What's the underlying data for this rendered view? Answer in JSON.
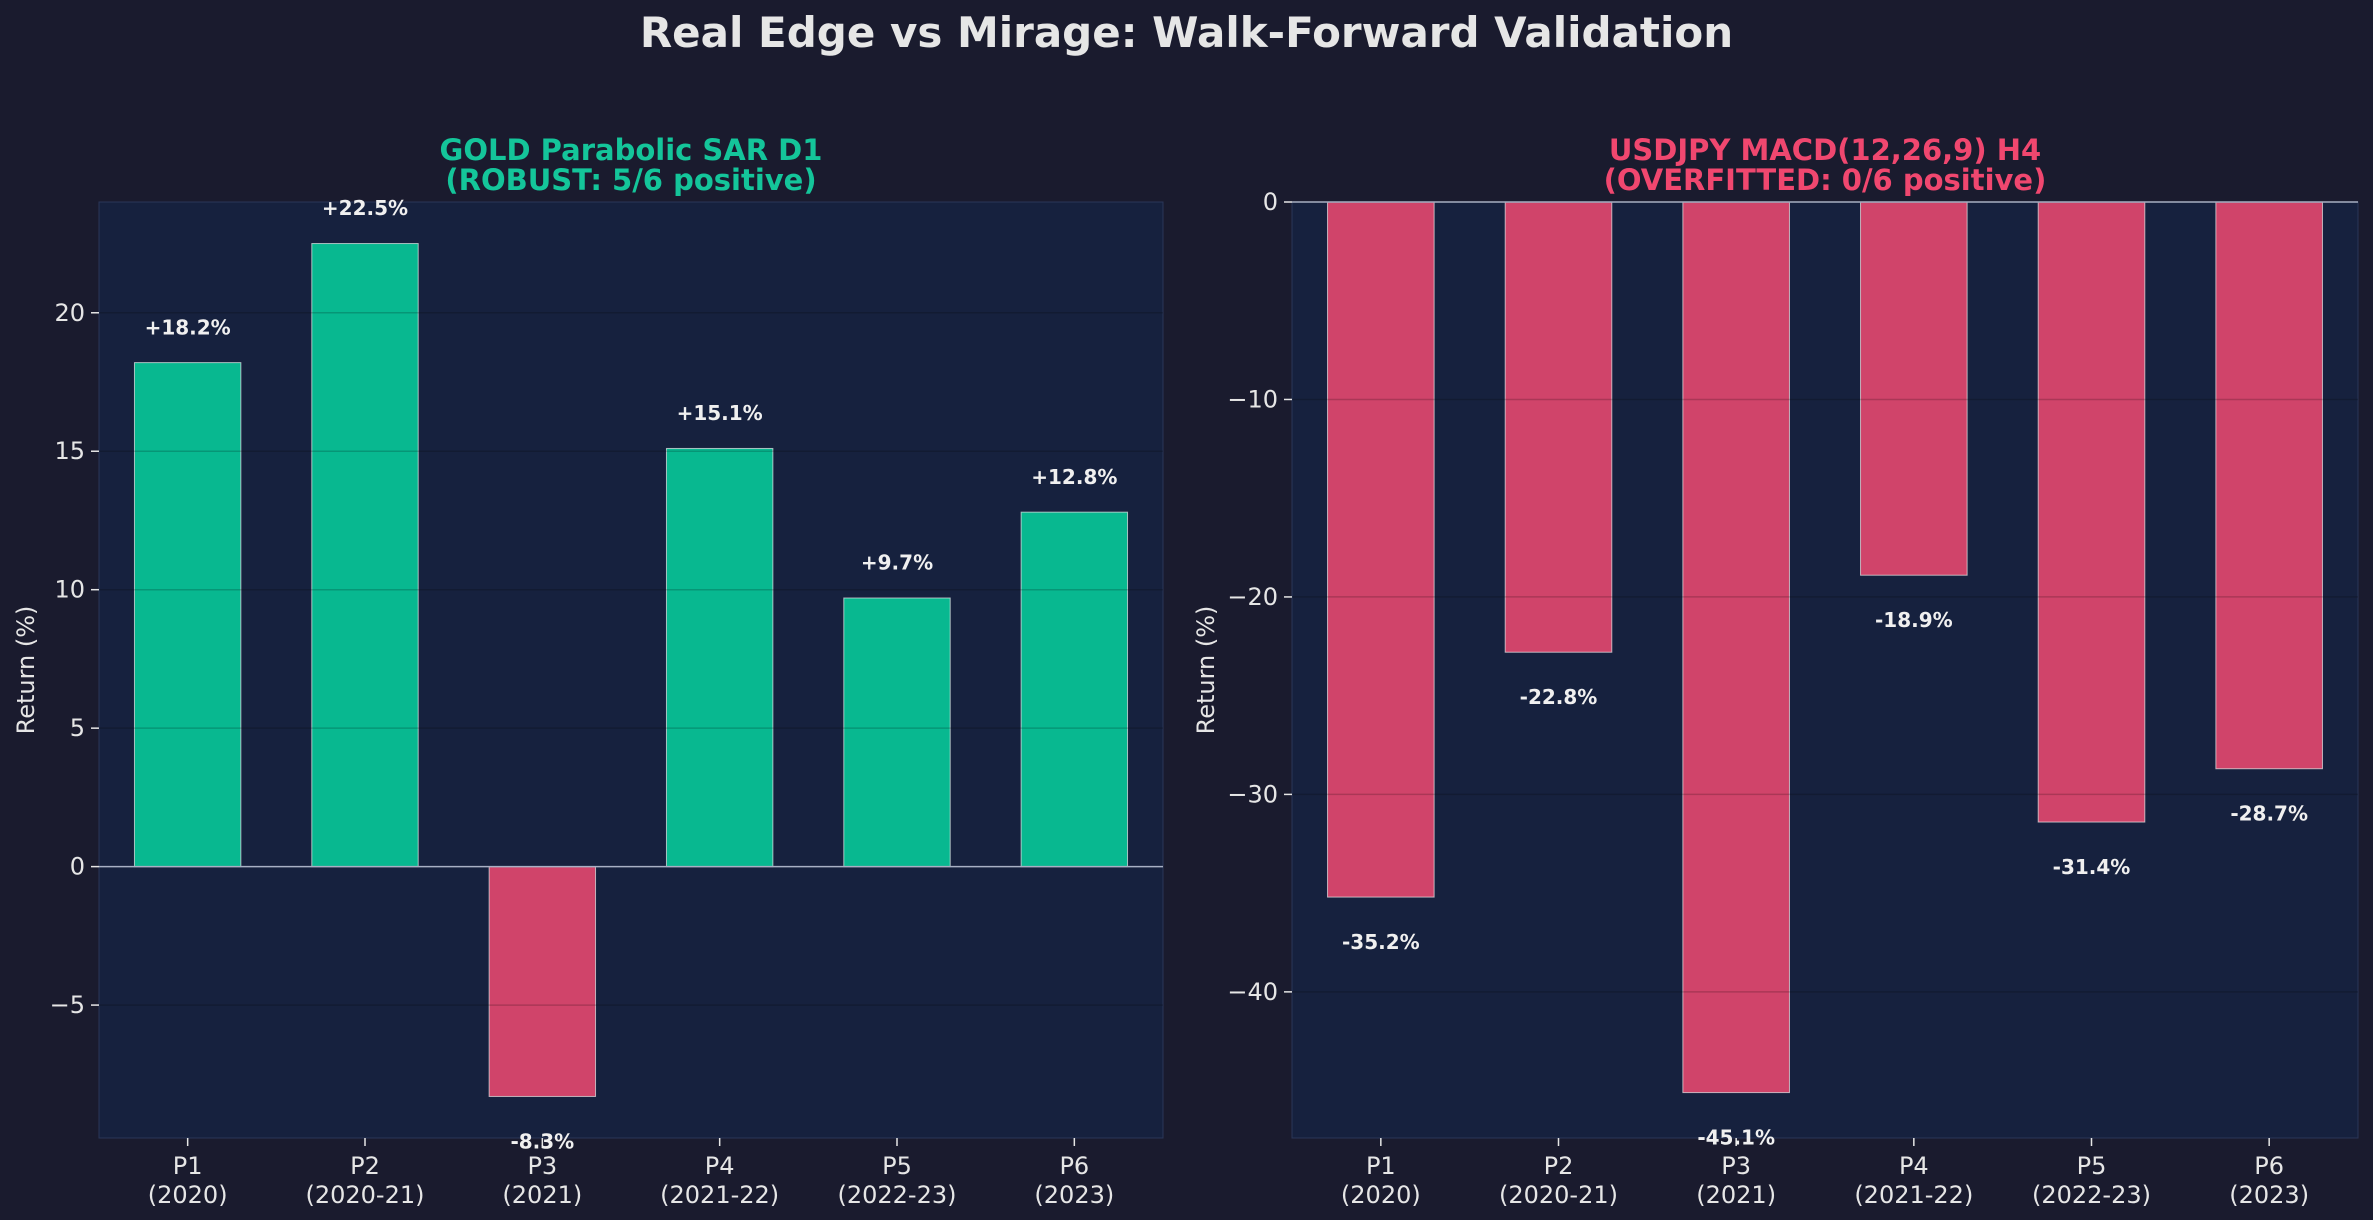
{
  "figure": {
    "title": "Real Edge vs Mirage: Walk-Forward Validation"
  },
  "colors": {
    "background": "#1a1b2e",
    "plot_background": "#16213e",
    "positive": "#08b890",
    "negative": "#d0446a",
    "gold_title": "#14c59a",
    "usdjpy_title": "#f0476f",
    "text": "#e6e6e6"
  },
  "chart_data": [
    {
      "type": "bar",
      "title_line1": "GOLD Parabolic SAR D1",
      "title_line2": "(ROBUST: 5/6 positive)",
      "title_color": "#14c59a",
      "ylabel": "Return (%)",
      "categories": [
        "P1\n(2020)",
        "P2\n(2020-21)",
        "P3\n(2021)",
        "P4\n(2021-22)",
        "P5\n(2022-23)",
        "P6\n(2023)"
      ],
      "values": [
        18.2,
        22.5,
        -8.3,
        15.1,
        9.7,
        12.8
      ],
      "value_labels": [
        "+18.2%",
        "+22.5%",
        "-8.3%",
        "+15.1%",
        "+9.7%",
        "+12.8%"
      ],
      "ylim": [
        -9.8,
        24
      ],
      "yticks": [
        -5,
        0,
        5,
        10,
        15,
        20
      ],
      "ytick_labels": [
        "−5",
        "0",
        "5",
        "10",
        "15",
        "20"
      ],
      "grid": true
    },
    {
      "type": "bar",
      "title_line1": "USDJPY MACD(12,26,9) H4",
      "title_line2": "(OVERFITTED: 0/6 positive)",
      "title_color": "#f0476f",
      "ylabel": "Return (%)",
      "categories": [
        "P1\n(2020)",
        "P2\n(2020-21)",
        "P3\n(2021)",
        "P4\n(2021-22)",
        "P5\n(2022-23)",
        "P6\n(2023)"
      ],
      "values": [
        -35.2,
        -22.8,
        -45.1,
        -18.9,
        -31.4,
        -28.7
      ],
      "value_labels": [
        "-35.2%",
        "-22.8%",
        "-45.1%",
        "-18.9%",
        "-31.4%",
        "-28.7%"
      ],
      "ylim": [
        -47.4,
        0
      ],
      "yticks": [
        -40,
        -30,
        -20,
        -10,
        0
      ],
      "ytick_labels": [
        "−40",
        "−30",
        "−20",
        "−10",
        "0"
      ],
      "grid": true
    }
  ]
}
